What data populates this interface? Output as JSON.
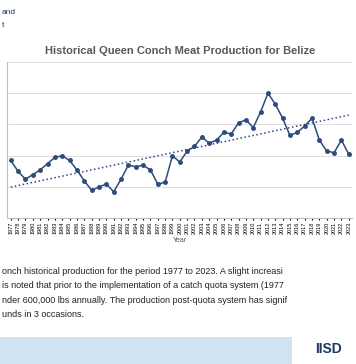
{
  "header": {
    "lines": [
      "and",
      "t"
    ]
  },
  "chart_data": {
    "type": "line",
    "title": "Historical Queen Conch Meat Production for Belize",
    "x_label": "Year",
    "categories": [
      "1977",
      "1978",
      "1979",
      "1980",
      "1981",
      "1982",
      "1983",
      "1984",
      "1985",
      "1986",
      "1987",
      "1988",
      "1989",
      "1990",
      "1991",
      "1992",
      "1993",
      "1994",
      "1995",
      "1996",
      "1997",
      "1998",
      "1999",
      "2000",
      "2001",
      "2002",
      "2003",
      "2004",
      "2005",
      "2006",
      "2007",
      "2008",
      "2009",
      "2010",
      "2011",
      "2012",
      "2013",
      "2014",
      "2015",
      "2016",
      "2017",
      "2018",
      "2019",
      "2020",
      "2021",
      "2022",
      "2023"
    ],
    "series": [
      {
        "type": "line",
        "color": "#2f4b7c",
        "marker": "circle",
        "line_style": "solid",
        "values": [
          570000,
          500000,
          450000,
          480000,
          510000,
          550000,
          590000,
          600000,
          570000,
          510000,
          440000,
          380000,
          400000,
          420000,
          370000,
          450000,
          540000,
          530000,
          540000,
          510000,
          420000,
          430000,
          600000,
          560000,
          630000,
          660000,
          720000,
          680000,
          700000,
          750000,
          740000,
          810000,
          830000,
          780000,
          880000,
          1000000,
          930000,
          840000,
          730000,
          750000,
          790000,
          840000,
          700000,
          630000,
          620000,
          700000,
          610000
        ]
      },
      {
        "type": "line",
        "color": "#2f4b7c",
        "marker": "none",
        "line_style": "dotted",
        "values": [
          400000,
          410000,
          420000,
          430000,
          440000,
          450000,
          460000,
          470000,
          480000,
          490000,
          500000,
          510000,
          520000,
          530000,
          540000,
          550000,
          560000,
          570000,
          580000,
          590000,
          600000,
          610000,
          620000,
          630000,
          640000,
          650000,
          660000,
          670000,
          680000,
          690000,
          700000,
          710000,
          720000,
          730000,
          740000,
          750000,
          760000,
          770000,
          780000,
          790000,
          800000,
          810000,
          820000,
          830000,
          840000,
          850000,
          860000
        ]
      }
    ],
    "ylim": [
      200000,
      1200000
    ],
    "yticks": [
      200000,
      400000,
      600000,
      800000,
      1000000,
      1200000
    ],
    "grid": true,
    "tick_labels": "x"
  },
  "caption": {
    "lines": [
      "onch historical production for the period 1977 to 2023. A slight increasi",
      "is noted that prior to the implementation of a catch quota system (1977",
      "nder 600,000 lbs annually. The production post-quota system has signif",
      "unds in 3 occasions."
    ]
  },
  "footer": {
    "logo": "IISD"
  }
}
